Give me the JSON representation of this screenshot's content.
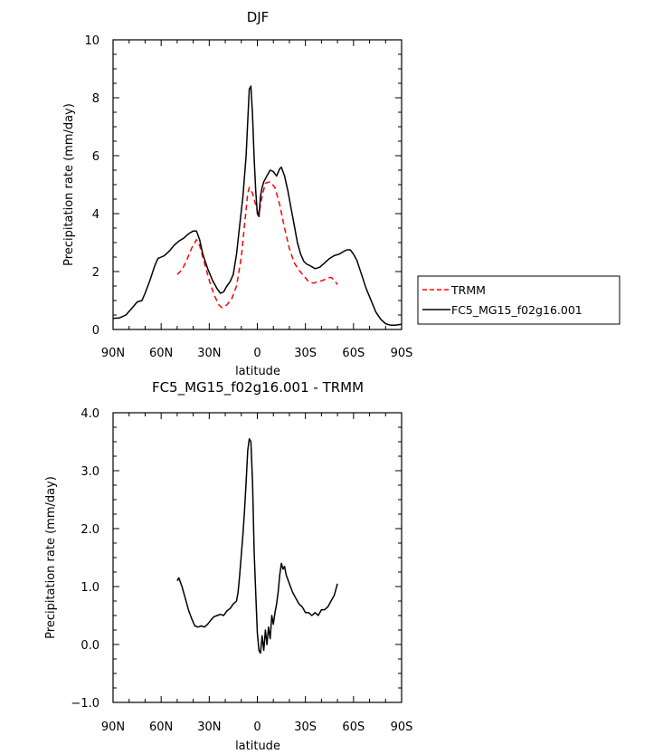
{
  "chart_data": [
    {
      "type": "line",
      "title": "DJF",
      "xlabel": "latitude",
      "ylabel": "Precipitation rate (mm/day)",
      "xlim": [
        -90,
        90
      ],
      "ylim": [
        0,
        10
      ],
      "x_ticks": [
        -90,
        -60,
        -30,
        0,
        30,
        60,
        90
      ],
      "x_tick_labels": [
        "90N",
        "60N",
        "30N",
        "0",
        "30S",
        "60S",
        "90S"
      ],
      "y_ticks": [
        0,
        2,
        4,
        6,
        8,
        10
      ],
      "y_tick_labels": [
        "0",
        "2",
        "4",
        "6",
        "8",
        "10"
      ],
      "legend": {
        "position": "right",
        "entries": [
          "TRMM",
          "FC5_MG15_f02g16.001"
        ]
      },
      "series": [
        {
          "name": "TRMM",
          "color": "#ff0000",
          "dash": "dashed",
          "points": [
            [
              -50,
              1.9
            ],
            [
              -47,
              2.05
            ],
            [
              -44,
              2.4
            ],
            [
              -41,
              2.8
            ],
            [
              -38,
              3.1
            ],
            [
              -36,
              2.9
            ],
            [
              -33,
              2.3
            ],
            [
              -30,
              1.7
            ],
            [
              -27,
              1.2
            ],
            [
              -24,
              0.85
            ],
            [
              -22,
              0.75
            ],
            [
              -19,
              0.85
            ],
            [
              -16,
              1.05
            ],
            [
              -13,
              1.5
            ],
            [
              -10,
              2.5
            ],
            [
              -8,
              3.6
            ],
            [
              -6,
              4.7
            ],
            [
              -5,
              4.9
            ],
            [
              -3,
              4.7
            ],
            [
              -1,
              4.3
            ],
            [
              0,
              4.1
            ],
            [
              1,
              4.0
            ],
            [
              3,
              4.6
            ],
            [
              5,
              5.05
            ],
            [
              8,
              5.1
            ],
            [
              11,
              4.9
            ],
            [
              14,
              4.3
            ],
            [
              17,
              3.5
            ],
            [
              20,
              2.8
            ],
            [
              23,
              2.3
            ],
            [
              26,
              2.05
            ],
            [
              29,
              1.85
            ],
            [
              32,
              1.65
            ],
            [
              35,
              1.6
            ],
            [
              38,
              1.65
            ],
            [
              41,
              1.7
            ],
            [
              44,
              1.78
            ],
            [
              46,
              1.8
            ],
            [
              48,
              1.7
            ],
            [
              50,
              1.55
            ]
          ]
        },
        {
          "name": "FC5_MG15_f02g16.001",
          "color": "#000000",
          "dash": "solid",
          "points": [
            [
              -90,
              0.38
            ],
            [
              -86,
              0.4
            ],
            [
              -82,
              0.5
            ],
            [
              -78,
              0.75
            ],
            [
              -75,
              0.95
            ],
            [
              -72,
              1.0
            ],
            [
              -70,
              1.25
            ],
            [
              -67,
              1.7
            ],
            [
              -64,
              2.2
            ],
            [
              -62,
              2.45
            ],
            [
              -60,
              2.5
            ],
            [
              -58,
              2.55
            ],
            [
              -55,
              2.7
            ],
            [
              -52,
              2.9
            ],
            [
              -49,
              3.05
            ],
            [
              -46,
              3.15
            ],
            [
              -43,
              3.3
            ],
            [
              -40,
              3.4
            ],
            [
              -38,
              3.4
            ],
            [
              -36,
              3.1
            ],
            [
              -34,
              2.6
            ],
            [
              -31,
              2.1
            ],
            [
              -28,
              1.7
            ],
            [
              -25,
              1.4
            ],
            [
              -23,
              1.25
            ],
            [
              -21,
              1.3
            ],
            [
              -19,
              1.5
            ],
            [
              -17,
              1.65
            ],
            [
              -15,
              1.9
            ],
            [
              -13,
              2.6
            ],
            [
              -11,
              3.6
            ],
            [
              -9,
              4.6
            ],
            [
              -7,
              6.0
            ],
            [
              -6,
              7.2
            ],
            [
              -5,
              8.3
            ],
            [
              -4,
              8.4
            ],
            [
              -3,
              7.4
            ],
            [
              -2,
              5.9
            ],
            [
              -1,
              4.8
            ],
            [
              0,
              4.0
            ],
            [
              1,
              3.9
            ],
            [
              2,
              4.6
            ],
            [
              3,
              4.9
            ],
            [
              4,
              5.1
            ],
            [
              6,
              5.3
            ],
            [
              8,
              5.5
            ],
            [
              10,
              5.45
            ],
            [
              12,
              5.3
            ],
            [
              14,
              5.55
            ],
            [
              15,
              5.6
            ],
            [
              17,
              5.3
            ],
            [
              19,
              4.8
            ],
            [
              21,
              4.2
            ],
            [
              23,
              3.6
            ],
            [
              25,
              3.0
            ],
            [
              27,
              2.6
            ],
            [
              29,
              2.35
            ],
            [
              31,
              2.25
            ],
            [
              33,
              2.2
            ],
            [
              36,
              2.1
            ],
            [
              39,
              2.15
            ],
            [
              42,
              2.3
            ],
            [
              45,
              2.45
            ],
            [
              48,
              2.55
            ],
            [
              51,
              2.6
            ],
            [
              54,
              2.7
            ],
            [
              56,
              2.75
            ],
            [
              58,
              2.75
            ],
            [
              60,
              2.6
            ],
            [
              62,
              2.4
            ],
            [
              65,
              1.9
            ],
            [
              68,
              1.4
            ],
            [
              71,
              1.0
            ],
            [
              74,
              0.6
            ],
            [
              77,
              0.35
            ],
            [
              80,
              0.2
            ],
            [
              83,
              0.15
            ],
            [
              86,
              0.15
            ],
            [
              90,
              0.18
            ]
          ]
        }
      ]
    },
    {
      "type": "line",
      "title": "FC5_MG15_f02g16.001 - TRMM",
      "xlabel": "latitude",
      "ylabel": "Precipitation rate (mm/day)",
      "xlim": [
        -90,
        90
      ],
      "ylim": [
        -1,
        4
      ],
      "x_ticks": [
        -90,
        -60,
        -30,
        0,
        30,
        60,
        90
      ],
      "x_tick_labels": [
        "90N",
        "60N",
        "30N",
        "0",
        "30S",
        "60S",
        "90S"
      ],
      "y_ticks": [
        -1,
        0,
        1,
        2,
        3,
        4
      ],
      "y_tick_labels": [
        "−1.0",
        "0.0",
        "1.0",
        "2.0",
        "3.0",
        "4.0"
      ],
      "series": [
        {
          "color": "#000000",
          "dash": "solid",
          "points": [
            [
              -50,
              1.1
            ],
            [
              -49,
              1.15
            ],
            [
              -47,
              1.0
            ],
            [
              -45,
              0.8
            ],
            [
              -43,
              0.6
            ],
            [
              -41,
              0.45
            ],
            [
              -39,
              0.32
            ],
            [
              -37,
              0.3
            ],
            [
              -35,
              0.32
            ],
            [
              -33,
              0.3
            ],
            [
              -31,
              0.35
            ],
            [
              -29,
              0.42
            ],
            [
              -27,
              0.48
            ],
            [
              -25,
              0.5
            ],
            [
              -23,
              0.52
            ],
            [
              -21,
              0.5
            ],
            [
              -19,
              0.58
            ],
            [
              -17,
              0.62
            ],
            [
              -15,
              0.7
            ],
            [
              -13,
              0.75
            ],
            [
              -12,
              0.9
            ],
            [
              -11,
              1.2
            ],
            [
              -10,
              1.55
            ],
            [
              -9,
              1.9
            ],
            [
              -8,
              2.3
            ],
            [
              -7,
              2.8
            ],
            [
              -6,
              3.35
            ],
            [
              -5,
              3.55
            ],
            [
              -4,
              3.5
            ],
            [
              -3,
              2.8
            ],
            [
              -2,
              1.6
            ],
            [
              -1,
              0.9
            ],
            [
              0,
              0.2
            ],
            [
              1,
              -0.1
            ],
            [
              2,
              -0.15
            ],
            [
              3,
              0.15
            ],
            [
              4,
              -0.1
            ],
            [
              5,
              0.25
            ],
            [
              6,
              0.0
            ],
            [
              7,
              0.3
            ],
            [
              8,
              0.1
            ],
            [
              9,
              0.5
            ],
            [
              10,
              0.35
            ],
            [
              11,
              0.55
            ],
            [
              12,
              0.7
            ],
            [
              13,
              0.9
            ],
            [
              14,
              1.2
            ],
            [
              15,
              1.4
            ],
            [
              16,
              1.3
            ],
            [
              17,
              1.35
            ],
            [
              18,
              1.2
            ],
            [
              20,
              1.05
            ],
            [
              22,
              0.9
            ],
            [
              24,
              0.8
            ],
            [
              26,
              0.7
            ],
            [
              28,
              0.65
            ],
            [
              30,
              0.55
            ],
            [
              32,
              0.55
            ],
            [
              34,
              0.5
            ],
            [
              36,
              0.55
            ],
            [
              38,
              0.5
            ],
            [
              40,
              0.6
            ],
            [
              42,
              0.6
            ],
            [
              44,
              0.65
            ],
            [
              46,
              0.75
            ],
            [
              48,
              0.85
            ],
            [
              50,
              1.05
            ]
          ]
        }
      ]
    }
  ]
}
